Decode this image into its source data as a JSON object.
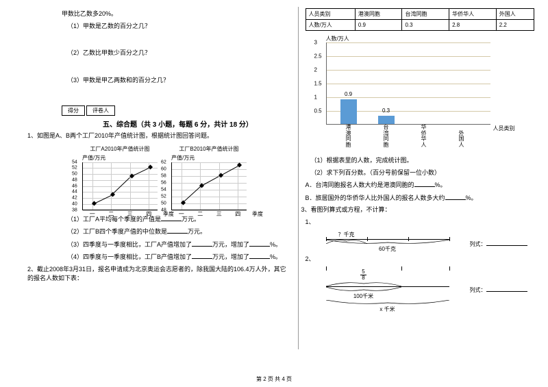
{
  "left": {
    "intro": "甲数比乙数多20%。",
    "q1": "（1）甲数是乙数的百分之几？",
    "q2": "（2）乙数比甲数少百分之几？",
    "q3": "（3）甲数是甲乙两数和的百分之几？",
    "score_label1": "得分",
    "score_label2": "评卷人",
    "section5": "五、综合题（共 3 小题，每题 6 分，共计 18 分）",
    "q5_1": "1、如图是A、B两个工厂2010年产值统计图，根据统计图回答问题。",
    "chartA": {
      "title": "工厂A2010年产值统计图",
      "ylabel": "产值/万元",
      "ylim": [
        38,
        54
      ],
      "yticks": [
        38,
        40,
        42,
        44,
        46,
        48,
        50,
        52,
        54
      ],
      "xlabels": [
        "一",
        "二",
        "三",
        "四"
      ],
      "xlabel": "季度",
      "points": [
        40,
        43,
        49,
        52
      ]
    },
    "chartB": {
      "title": "工厂B2010年产值统计图",
      "ylabel": "产值/万元",
      "ylim": [
        48,
        62
      ],
      "yticks": [
        48,
        50,
        52,
        54,
        56,
        58,
        60,
        62
      ],
      "xlabels": [
        "一",
        "二",
        "三",
        "四"
      ],
      "xlabel": "季度",
      "points": [
        50,
        55,
        58,
        61
      ]
    },
    "q5_1_sub1": "（1）工厂A平均每个季度的产值是",
    "q5_1_sub1_unit": "万元。",
    "q5_1_sub2": "（2）工厂B四个季度产值的中位数是",
    "q5_1_sub2_unit": "万元。",
    "q5_1_sub3a": "（3）四季度与一季度相比，工厂A产值增加了",
    "q5_1_sub3b": "万元，增加了",
    "q5_1_sub3c": "%。",
    "q5_1_sub4a": "（4）四季度与一季度相比，工厂B产值增加了",
    "q5_1_sub4b": "万元，增加了",
    "q5_1_sub4c": "%。",
    "q5_2": "2、截止2008年3月31日，报名申请成为北京奥运会志愿者的，除我国大陆的106.4万人外，其它的报名人数如下表："
  },
  "right": {
    "table": {
      "headers": [
        "人员类别",
        "港澳同胞",
        "台湾同胞",
        "华侨华人",
        "外国人"
      ],
      "row_label": "人数/万人",
      "values": [
        "0.9",
        "0.3",
        "2.8",
        "2.2"
      ]
    },
    "bar": {
      "ylabel": "人数/万人",
      "ymax": 3,
      "yticks": [
        0.5,
        1,
        1.5,
        2,
        2.5,
        3
      ],
      "cats": [
        "港澳同胞",
        "台湾同胞",
        "华侨华人",
        "外国人"
      ],
      "vals": [
        0.9,
        0.3,
        null,
        null
      ],
      "shown_vals": [
        "0.9",
        "0.3"
      ],
      "xlabel": "人员类别"
    },
    "r1": "（1）根据表里的人数，完成统计图。",
    "r2": "（2）求下列百分数。（百分号前保留一位小数）",
    "rA": "A．台湾同胞报名人数大约是港澳同胞的",
    "rA_suf": "%。",
    "rB": "B．旅居国外的华侨华人比外国人的报名人数多大约",
    "rB_suf": "%。",
    "q3": "3、看图列算式或方程，不计算：",
    "d1_num": "1、",
    "d1_top": "？千克",
    "d1_bot": "60千克",
    "d1_label": "列式：",
    "d2_num": "2、",
    "d2_frac": "5/8",
    "d2_mid": "100千米",
    "d2_bot": "x 千米",
    "d2_label": "列式："
  },
  "footer": "第 2 页 共 4 页"
}
